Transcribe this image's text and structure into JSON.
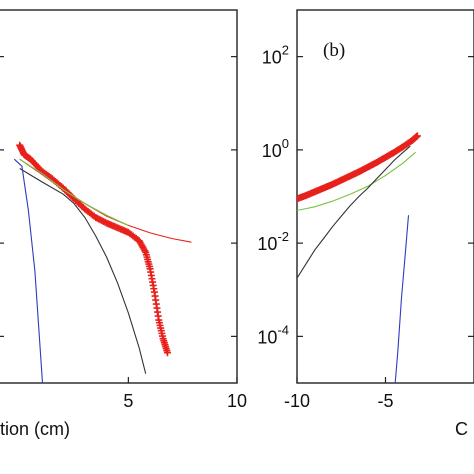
{
  "chart_data": [
    {
      "type": "line",
      "panel": "a",
      "xlabel_visible": "tion (cm)",
      "xlim": [
        -1,
        10
      ],
      "ylim": [
        -5,
        3
      ],
      "yscale": "log",
      "x_ticks": [
        5,
        10
      ],
      "x_tick_labels": [
        "5",
        "10"
      ],
      "y_ticks": [
        -4,
        -2,
        0,
        2
      ],
      "grid": false,
      "legend": "none",
      "series": [
        {
          "style": "markers-plus",
          "color": "#e8201c",
          "x": [
            0,
            0.2,
            0.5,
            1,
            1.5,
            2,
            2.5,
            3,
            3.5,
            4,
            4.5,
            5,
            5.5,
            5.8,
            6,
            6.2,
            6.4,
            6.6,
            6.8
          ],
          "y": [
            0.1,
            -0.1,
            -0.2,
            -0.45,
            -0.62,
            -0.82,
            -1.05,
            -1.27,
            -1.45,
            -1.57,
            -1.67,
            -1.77,
            -1.95,
            -2.2,
            -2.55,
            -3.05,
            -3.65,
            -4.05,
            -4.35
          ]
        },
        {
          "style": "line",
          "color": "#e8201c",
          "x": [
            0,
            1,
            2,
            3,
            4,
            5,
            6,
            7,
            7.9
          ],
          "y": [
            -0.2,
            -0.52,
            -0.85,
            -1.15,
            -1.42,
            -1.62,
            -1.78,
            -1.9,
            -1.98
          ]
        },
        {
          "style": "line",
          "color": "#7cc242",
          "x": [
            0,
            1,
            2,
            3,
            4,
            5
          ],
          "y": [
            -0.2,
            -0.5,
            -0.85,
            -1.15,
            -1.4,
            -1.62
          ]
        },
        {
          "style": "line",
          "color": "#333333",
          "x": [
            0,
            1,
            2,
            2.5,
            3,
            3.5,
            4,
            4.5,
            5,
            5.5,
            5.8
          ],
          "y": [
            -0.4,
            -0.68,
            -0.95,
            -1.15,
            -1.45,
            -1.85,
            -2.3,
            -2.85,
            -3.5,
            -4.25,
            -4.8
          ]
        },
        {
          "style": "line",
          "color": "#2b3dbf",
          "x": [
            -0.25,
            0.1,
            0.4,
            0.7,
            1.05
          ],
          "y": [
            -0.2,
            -0.35,
            -1.3,
            -2.6,
            -5
          ]
        }
      ]
    },
    {
      "type": "line",
      "panel": "b",
      "panel_label": "(b)",
      "xlim": [
        -10,
        0
      ],
      "ylim": [
        -5,
        3
      ],
      "yscale": "log",
      "x_ticks": [
        -10,
        -5
      ],
      "x_tick_labels": [
        "-10",
        "-5"
      ],
      "y_ticks": [
        -4,
        -2,
        0,
        2
      ],
      "y_tick_bases": [
        "10",
        "10",
        "10",
        "10"
      ],
      "y_tick_exponents": [
        "-4",
        "-2",
        "0",
        "2"
      ],
      "xlabel_visible": "C",
      "grid": false,
      "legend": "none",
      "series": [
        {
          "style": "markers-plus",
          "color": "#e8201c",
          "x": [
            -10,
            -9.5,
            -9,
            -8.5,
            -8,
            -7.5,
            -7,
            -6.5,
            -6,
            -5.5,
            -5,
            -4.5,
            -4,
            -3.5,
            -3.2
          ],
          "y": [
            -1.05,
            -0.98,
            -0.9,
            -0.82,
            -0.74,
            -0.65,
            -0.56,
            -0.47,
            -0.37,
            -0.27,
            -0.16,
            -0.05,
            0.07,
            0.2,
            0.3
          ]
        },
        {
          "style": "line",
          "color": "#7cc242",
          "x": [
            -10,
            -9,
            -8,
            -7,
            -6,
            -5,
            -4,
            -3.3
          ],
          "y": [
            -1.3,
            -1.22,
            -1.1,
            -0.95,
            -0.78,
            -0.55,
            -0.28,
            -0.05
          ]
        },
        {
          "style": "line",
          "color": "#333333",
          "x": [
            -10,
            -9.5,
            -9,
            -8.5,
            -8,
            -7.5,
            -7,
            -6.5,
            -6,
            -5.5,
            -5,
            -4.5,
            -4,
            -3.6
          ],
          "y": [
            -2.75,
            -2.45,
            -2.15,
            -1.9,
            -1.65,
            -1.42,
            -1.2,
            -1.0,
            -0.82,
            -0.62,
            -0.42,
            -0.22,
            -0.05,
            0.08
          ]
        },
        {
          "style": "line",
          "color": "#2b3dbf",
          "x": [
            -4.45,
            -4.3,
            -4.1,
            -3.9,
            -3.7
          ],
          "y": [
            -5,
            -4.3,
            -3.2,
            -2.3,
            -1.4
          ]
        }
      ]
    }
  ]
}
